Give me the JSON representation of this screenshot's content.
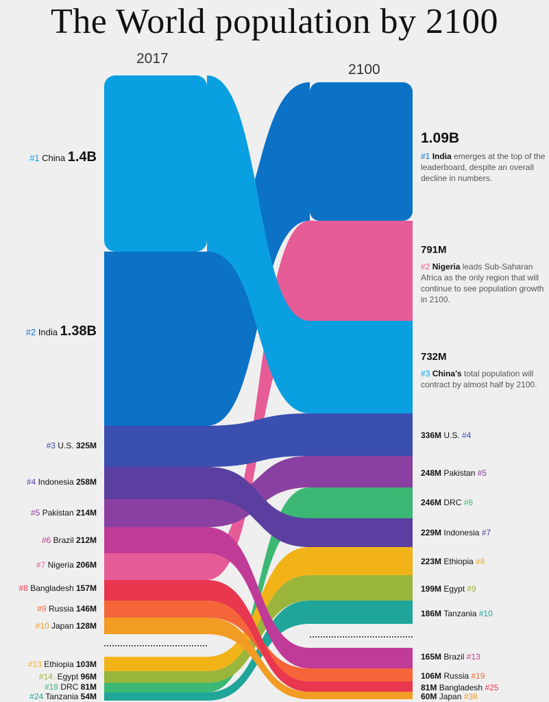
{
  "title": "The World population by 2100",
  "chart_data": {
    "type": "sankey",
    "title": "The World population by 2100",
    "year_left": "2017",
    "year_right": "2100",
    "left": [
      {
        "country": "China",
        "rank": "#1",
        "value_label": "1.4B",
        "value_m": 1400,
        "color": "#0a9fe0"
      },
      {
        "country": "India",
        "rank": "#2",
        "value_label": "1.38B",
        "value_m": 1380,
        "color": "#0b72c6"
      },
      {
        "country": "U.S.",
        "rank": "#3",
        "value_label": "325M",
        "value_m": 325,
        "color": "#3a4fb0"
      },
      {
        "country": "Indonesia",
        "rank": "#4",
        "value_label": "258M",
        "value_m": 258,
        "color": "#5a3fa0"
      },
      {
        "country": "Pakistan",
        "rank": "#5",
        "value_label": "214M",
        "value_m": 214,
        "color": "#8a40a0"
      },
      {
        "country": "Brazil",
        "rank": "#6",
        "value_label": "212M",
        "value_m": 212,
        "color": "#c03a98"
      },
      {
        "country": "Nigeria",
        "rank": "#7",
        "value_label": "206M",
        "value_m": 206,
        "color": "#e65c96"
      },
      {
        "country": "Bangladesh",
        "rank": "#8",
        "value_label": "157M",
        "value_m": 157,
        "color": "#e8374f"
      },
      {
        "country": "Russia",
        "rank": "#9",
        "value_label": "146M",
        "value_m": 146,
        "color": "#f4663a"
      },
      {
        "country": "Japan",
        "rank": "#10",
        "value_label": "128M",
        "value_m": 128,
        "color": "#f39c24"
      },
      {
        "country": "Ethiopia",
        "rank": "#13",
        "value_label": "103M",
        "value_m": 103,
        "color": "#f2b319"
      },
      {
        "country": "Egypt",
        "rank": "#14.",
        "value_label": "96M",
        "value_m": 96,
        "color": "#9ab53b"
      },
      {
        "country": "DRC",
        "rank": "#18",
        "value_label": "81M",
        "value_m": 81,
        "color": "#3cb874"
      },
      {
        "country": "Tanzania",
        "rank": "#24",
        "value_label": "54M",
        "value_m": 54,
        "color": "#1fa59a"
      }
    ],
    "right": [
      {
        "country": "India",
        "rank": "#1",
        "value_label": "1.09B",
        "value_m": 1090
      },
      {
        "country": "Nigeria",
        "rank": "#2",
        "value_label": "791M",
        "value_m": 791
      },
      {
        "country": "China",
        "rank": "#3",
        "value_label": "732M",
        "value_m": 732
      },
      {
        "country": "U.S.",
        "rank": "#4",
        "value_label": "336M",
        "value_m": 336
      },
      {
        "country": "Pakistan",
        "rank": "#5",
        "value_label": "248M",
        "value_m": 248
      },
      {
        "country": "DRC",
        "rank": "#6",
        "value_label": "246M",
        "value_m": 246
      },
      {
        "country": "Indonesia",
        "rank": "#7",
        "value_label": "229M",
        "value_m": 229
      },
      {
        "country": "Ethiopia",
        "rank": "#8",
        "value_label": "223M",
        "value_m": 223
      },
      {
        "country": "Egypt",
        "rank": "#9",
        "value_label": "199M",
        "value_m": 199
      },
      {
        "country": "Tanzania",
        "rank": "#10",
        "value_label": "186M",
        "value_m": 186
      },
      {
        "country": "Brazil",
        "rank": "#13",
        "value_label": "165M",
        "value_m": 165
      },
      {
        "country": "Russia",
        "rank": "#19",
        "value_label": "106M",
        "value_m": 106
      },
      {
        "country": "Bangladesh",
        "rank": "#25",
        "value_label": "81M",
        "value_m": 81
      },
      {
        "country": "Japan",
        "rank": "#38",
        "value_label": "60M",
        "value_m": 60
      }
    ],
    "annotations": {
      "india": {
        "rank": "#1",
        "name": "India",
        "text": " emerges at the top of the leaderboard, despite an overall decline in numbers."
      },
      "nigeria": {
        "rank": "#2",
        "name": "Nigeria",
        "text": " leads Sub-Saharan Africa as the only region that will continue to see population growth in 2100."
      },
      "china": {
        "rank": "#3",
        "name": "China’s",
        "text": " total population will contract by almost half by 2100."
      }
    }
  }
}
